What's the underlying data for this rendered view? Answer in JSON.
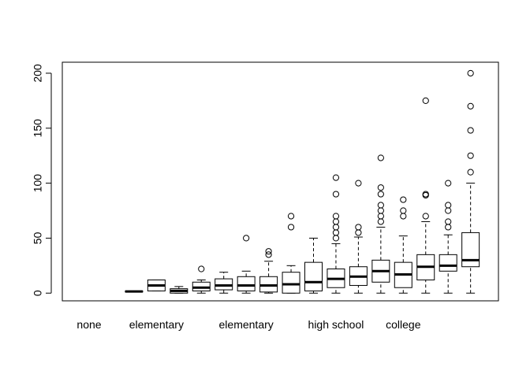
{
  "chart_data": {
    "type": "boxplot",
    "title": "",
    "xlabel": "",
    "ylabel": "",
    "ylim": [
      -7,
      210
    ],
    "grid": false,
    "legend": "none",
    "y_ticks": [
      0,
      50,
      100,
      150,
      200
    ],
    "x_tick_labels": [
      {
        "at": 1,
        "label": "none"
      },
      {
        "at": 4,
        "label": "elementary"
      },
      {
        "at": 8,
        "label": "elementary"
      },
      {
        "at": 12,
        "label": "high school"
      },
      {
        "at": 15,
        "label": "college"
      }
    ],
    "boxes": [
      {
        "pos": 1,
        "empty": true
      },
      {
        "pos": 2,
        "empty": true
      },
      {
        "pos": 3,
        "whisker_low": 1,
        "q1": 1,
        "median": 1.5,
        "q3": 2,
        "whisker_high": 2,
        "outliers": []
      },
      {
        "pos": 4,
        "whisker_low": 2,
        "q1": 2,
        "median": 7,
        "q3": 12,
        "whisker_high": 12,
        "outliers": []
      },
      {
        "pos": 5,
        "whisker_low": 0,
        "q1": 0,
        "median": 2,
        "q3": 4,
        "whisker_high": 6,
        "outliers": []
      },
      {
        "pos": 6,
        "whisker_low": 0,
        "q1": 2,
        "median": 5,
        "q3": 10,
        "whisker_high": 12,
        "outliers": [
          22
        ]
      },
      {
        "pos": 7,
        "whisker_low": 0,
        "q1": 3,
        "median": 7,
        "q3": 13,
        "whisker_high": 19,
        "outliers": []
      },
      {
        "pos": 8,
        "whisker_low": 0,
        "q1": 2,
        "median": 7,
        "q3": 15,
        "whisker_high": 20,
        "outliers": [
          50
        ]
      },
      {
        "pos": 9,
        "whisker_low": 0,
        "q1": 1,
        "median": 7,
        "q3": 15,
        "whisker_high": 29,
        "outliers": [
          35,
          38
        ]
      },
      {
        "pos": 10,
        "whisker_low": 0,
        "q1": 0,
        "median": 8,
        "q3": 19,
        "whisker_high": 25,
        "outliers": [
          60,
          70
        ]
      },
      {
        "pos": 11,
        "whisker_low": 0,
        "q1": 2,
        "median": 10,
        "q3": 28,
        "whisker_high": 50,
        "outliers": []
      },
      {
        "pos": 12,
        "whisker_low": 0,
        "q1": 5,
        "median": 13,
        "q3": 22,
        "whisker_high": 45,
        "outliers": [
          50,
          55,
          60,
          65,
          70,
          90,
          105
        ]
      },
      {
        "pos": 13,
        "whisker_low": 0,
        "q1": 7,
        "median": 15,
        "q3": 24,
        "whisker_high": 51,
        "outliers": [
          55,
          60,
          100
        ]
      },
      {
        "pos": 14,
        "whisker_low": 0,
        "q1": 10,
        "median": 20,
        "q3": 30,
        "whisker_high": 60,
        "outliers": [
          65,
          70,
          75,
          80,
          90,
          96,
          123
        ]
      },
      {
        "pos": 15,
        "whisker_low": 0,
        "q1": 5,
        "median": 17,
        "q3": 28,
        "whisker_high": 52,
        "outliers": [
          70,
          75,
          85
        ]
      },
      {
        "pos": 16,
        "whisker_low": 0,
        "q1": 12,
        "median": 24,
        "q3": 35,
        "whisker_high": 65,
        "outliers": [
          70,
          89,
          90,
          175
        ]
      },
      {
        "pos": 17,
        "whisker_low": 0,
        "q1": 20,
        "median": 25,
        "q3": 35,
        "whisker_high": 53,
        "outliers": [
          60,
          65,
          75,
          80,
          100
        ]
      },
      {
        "pos": 18,
        "whisker_low": 0,
        "q1": 24,
        "median": 30,
        "q3": 55,
        "whisker_high": 100,
        "outliers": [
          110,
          125,
          148,
          170,
          200
        ]
      }
    ]
  }
}
